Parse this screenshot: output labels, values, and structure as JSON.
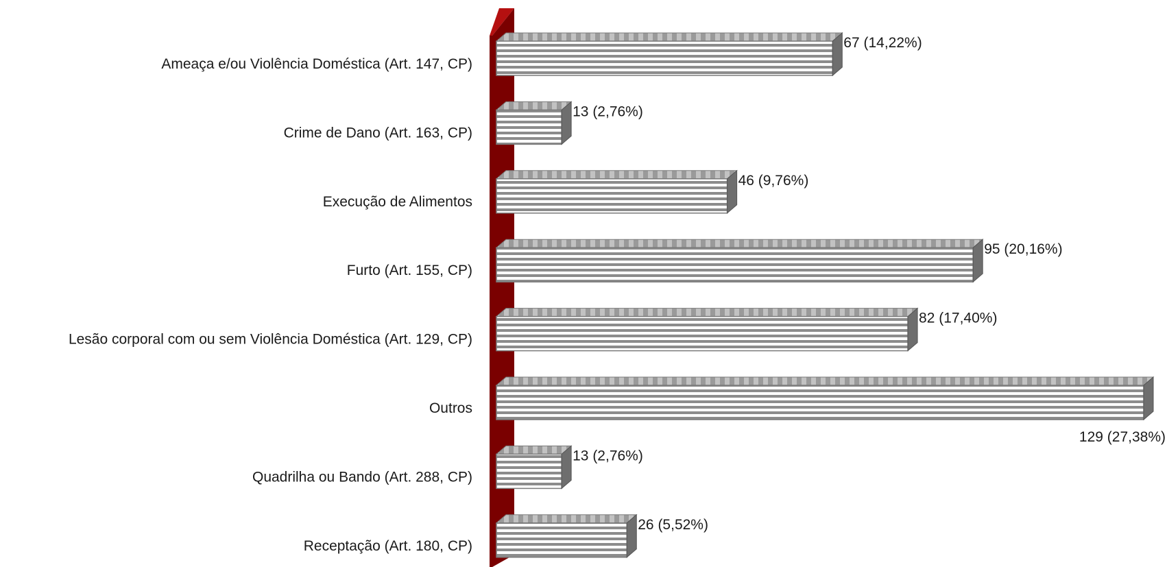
{
  "chart_data": {
    "type": "bar",
    "orientation": "horizontal",
    "categories": [
      "Ameaça e/ou Violência Doméstica (Art. 147, CP)",
      "Crime de Dano (Art. 163, CP)",
      "Execução de Alimentos",
      "Furto (Art. 155, CP)",
      "Lesão corporal com ou sem Violência Doméstica (Art. 129, CP)",
      "Outros",
      "Quadrilha ou Bando (Art. 288, CP)",
      "Receptação (Art. 180, CP)"
    ],
    "values": [
      67,
      13,
      46,
      95,
      82,
      129,
      13,
      26
    ],
    "data_labels": [
      "67 (14,22%)",
      "13 (2,76%)",
      "46 (9,76%)",
      "95 (20,16%)",
      "82 (17,40%)",
      "129 (27,38%)",
      "13 (2,76%)",
      "26 (5,52%)"
    ],
    "xlim": [
      0,
      129
    ],
    "title": "",
    "xlabel": "",
    "ylabel": "",
    "grid": false,
    "legend": "none",
    "style": "3d-striped",
    "colors": {
      "bar_stripe_dark": "#8c8c8c",
      "bar_stripe_light": "#ffffff",
      "bar_top": "#b3b3b3",
      "bar_side": "#6e6e6e",
      "axis_wall": "#7a0000",
      "axis_wall_top": "#b51010"
    }
  }
}
